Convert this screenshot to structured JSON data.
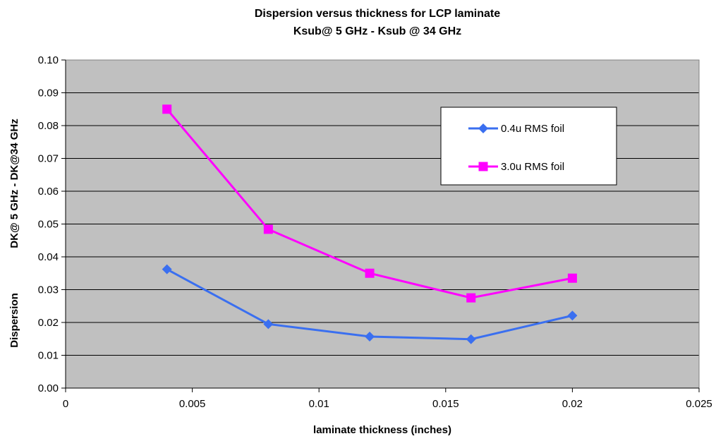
{
  "chart_data": {
    "type": "line",
    "title": "Dispersion versus thickness for LCP laminate",
    "subtitle": "Ksub@ 5 GHz - Ksub @ 34 GHz",
    "xlabel": "laminate thickness (inches)",
    "ylabel_left": "Dispersion",
    "ylabel_right": "DK@ 5 GHz - DK@34 GHz",
    "xlim": [
      0,
      0.025
    ],
    "ylim": [
      0,
      0.1
    ],
    "x_ticks": [
      "0",
      "0.005",
      "0.01",
      "0.015",
      "0.02",
      "0.025"
    ],
    "y_ticks": [
      "0.00",
      "0.01",
      "0.02",
      "0.03",
      "0.04",
      "0.05",
      "0.06",
      "0.07",
      "0.08",
      "0.09",
      "0.10"
    ],
    "grid": "horizontal",
    "legend_position": "top-right",
    "plot_background": "#c0c0c0",
    "x": [
      0.004,
      0.008,
      0.012,
      0.016,
      0.02
    ],
    "series": [
      {
        "name": "0.4u RMS foil",
        "color": "#3a6ff0",
        "marker": "diamond",
        "values": [
          0.0362,
          0.0195,
          0.0157,
          0.0149,
          0.0221
        ]
      },
      {
        "name": "3.0u RMS foil",
        "color": "#ff00ff",
        "marker": "square",
        "values": [
          0.085,
          0.0484,
          0.035,
          0.0275,
          0.0335
        ]
      }
    ]
  }
}
